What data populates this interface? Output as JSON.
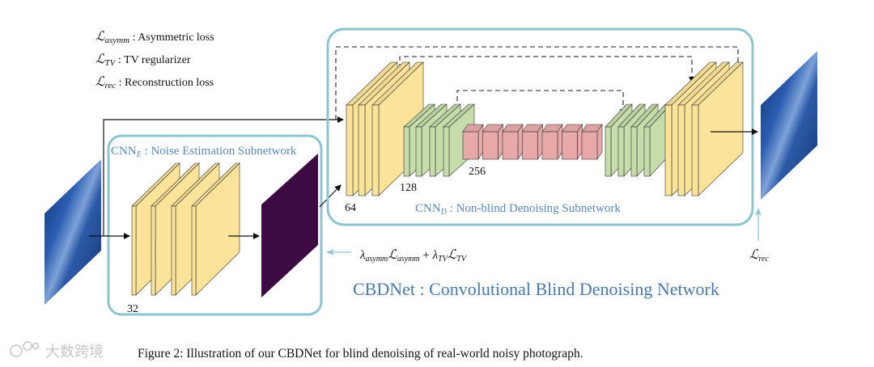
{
  "legend": [
    {
      "symbol": "ℒ",
      "sub": "asymm",
      "text": " : Asymmetric loss"
    },
    {
      "symbol": "ℒ",
      "sub": "TV",
      "text": " : TV regularizer"
    },
    {
      "symbol": "ℒ",
      "sub": "rec",
      "text": " : Reconstruction loss"
    }
  ],
  "cnn_e": {
    "name": "CNN",
    "sub": "E",
    "label": " : Noise Estimation Subnetwork",
    "channels": "32"
  },
  "cnn_d": {
    "name": "CNN",
    "sub": "D",
    "label": " : Non-blind Denoising Subnetwork",
    "channels": [
      "64",
      "128",
      "256"
    ]
  },
  "losses": {
    "noise_loss": {
      "l1": "λ",
      "s1": "asymm",
      "L1": "ℒ",
      "s2": "asymm",
      "plus": " + ",
      "l2": "λ",
      "s3": "TV",
      "L2": "ℒ",
      "s4": "TV"
    },
    "rec_loss": {
      "L": "ℒ",
      "sub": "rec"
    }
  },
  "title": "CBDNet : Convolutional Blind Denoising Network",
  "caption": "Figure 2: Illustration of our CBDNet for blind denoising of real-world noisy photograph.",
  "watermark": "大数跨境",
  "colors": {
    "box": "#8cc4cf",
    "label": "#5b88b5",
    "yellow": "#fbe39a",
    "green": "#c6dcaa",
    "red": "#e7a9a8",
    "noise_map": "#3e0a43",
    "photo": "#1f4c93"
  }
}
